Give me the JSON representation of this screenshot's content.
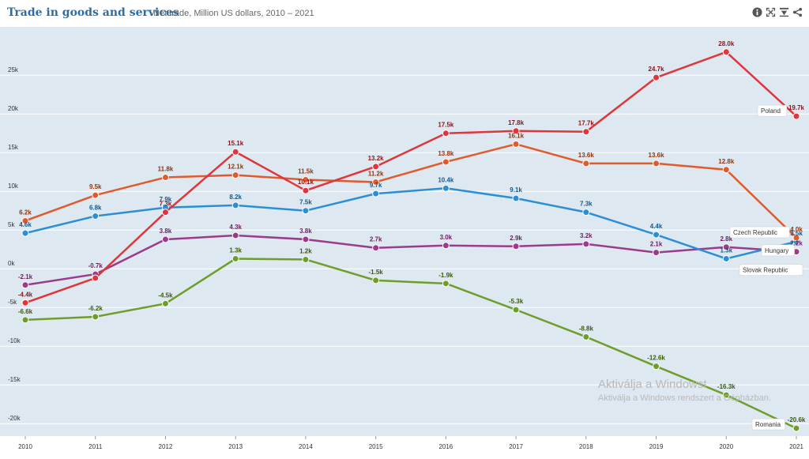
{
  "header": {
    "title": "Trade in goods and services",
    "subtitle": "Net trade, Million US dollars, 2010 – 2021",
    "tools": [
      {
        "name": "info-icon"
      },
      {
        "name": "fullscreen-icon"
      },
      {
        "name": "download-icon"
      },
      {
        "name": "share-icon"
      }
    ]
  },
  "watermark": {
    "line1": "Aktiválja a Windowst",
    "line2": "Aktiválja a Windows rendszert a Gépházban."
  },
  "chart_data": {
    "type": "line",
    "x": [
      "2010",
      "2011",
      "2012",
      "2013",
      "2014",
      "2015",
      "2016",
      "2017",
      "2018",
      "2019",
      "2020",
      "2021"
    ],
    "ylim": [
      -21000,
      29000
    ],
    "yticks": [
      {
        "value": -20000,
        "label": "-20k"
      },
      {
        "value": -15000,
        "label": "-15k"
      },
      {
        "value": -10000,
        "label": "-10k"
      },
      {
        "value": -5000,
        "label": "-5k"
      },
      {
        "value": 0,
        "label": "0k"
      },
      {
        "value": 5000,
        "label": "5k"
      },
      {
        "value": 10000,
        "label": "10k"
      },
      {
        "value": 15000,
        "label": "15k"
      },
      {
        "value": 20000,
        "label": "20k"
      },
      {
        "value": 25000,
        "label": "25k"
      }
    ],
    "grid": true,
    "colors": {
      "plot_bg": "#dde8f0",
      "grid": "#ffffff"
    },
    "series": [
      {
        "name": "Romania",
        "color": "#6e9e2a",
        "label_color": "#3d5a10",
        "values": [
          -6600,
          -6200,
          -4500,
          1300,
          1200,
          -1500,
          -1900,
          -5300,
          -8800,
          -12600,
          -16300,
          -20600
        ],
        "labels": [
          "-6.6k",
          "-6.2k",
          "-4.5k",
          "1.3k",
          "1.2k",
          "-1.5k",
          "-1.9k",
          "-5.3k",
          "-8.8k",
          "-12.6k",
          "-16.3k",
          "-20.6k"
        ]
      },
      {
        "name": "Slovak Republic",
        "color": "#9b3b8c",
        "label_color": "#6b1f60",
        "values": [
          -2100,
          -700,
          3800,
          4300,
          3800,
          2700,
          3000,
          2900,
          3200,
          2100,
          2800,
          2200
        ],
        "labels": [
          "-2.1k",
          "-0.7k",
          "3.8k",
          "4.3k",
          "3.8k",
          "2.7k",
          "3.0k",
          "2.9k",
          "3.2k",
          "2.1k",
          "2.8k",
          "2.2k"
        ]
      },
      {
        "name": "Hungary",
        "color": "#2c8fd6",
        "label_color": "#185a86",
        "values": [
          4600,
          6800,
          7900,
          8200,
          7500,
          9700,
          10400,
          9100,
          7300,
          4400,
          1300,
          3500
        ],
        "labels": [
          "4.6k",
          "6.8k",
          "7.9k",
          "8.2k",
          "7.5k",
          "9.7k",
          "10.4k",
          "9.1k",
          "7.3k",
          "4.4k",
          "1.3k",
          "3.5k"
        ]
      },
      {
        "name": "Czech Republic",
        "color": "#e05a2b",
        "label_color": "#8f3510",
        "values": [
          6200,
          9500,
          11800,
          12100,
          11500,
          11200,
          13800,
          16100,
          13600,
          13600,
          12800,
          4000
        ],
        "labels": [
          "6.2k",
          "9.5k",
          "11.8k",
          "12.1k",
          "11.5k",
          "11.2k",
          "13.8k",
          "16.1k",
          "13.6k",
          "13.6k",
          "12.8k",
          "4.0k"
        ]
      },
      {
        "name": "Poland",
        "color": "#e0353b",
        "label_color": "#8c1418",
        "values": [
          -4400,
          -1200,
          7300,
          15100,
          10100,
          13200,
          17500,
          17800,
          17700,
          24700,
          28000,
          19700
        ],
        "labels": [
          "-4.4k",
          "",
          "7.3k",
          "15.1k",
          "10.1k",
          "13.2k",
          "17.5k",
          "17.8k",
          "17.7k",
          "24.7k",
          "28.0k",
          "19.7k"
        ]
      }
    ]
  }
}
